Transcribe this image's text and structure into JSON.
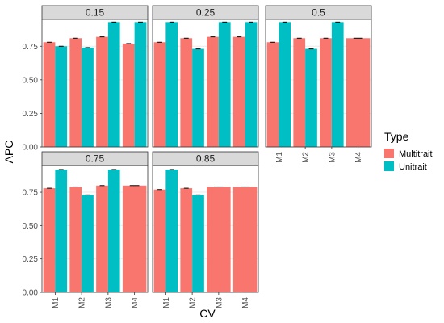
{
  "chart_data": {
    "type": "bar",
    "xlabel": "CV",
    "ylabel": "APC",
    "ylim": [
      0,
      0.95
    ],
    "yticks": [
      0.0,
      0.25,
      0.5,
      0.75
    ],
    "ytick_labels": [
      "0.00",
      "0.25",
      "0.50",
      "0.75"
    ],
    "categories": [
      "M1",
      "M2",
      "M3",
      "M4"
    ],
    "legend": {
      "title": "Type",
      "position": "right",
      "entries": [
        {
          "name": "Multitrait",
          "color": "#f8766d"
        },
        {
          "name": "Unitrait",
          "color": "#00bfc4"
        }
      ]
    },
    "colors": {
      "Multitrait": "#f8766d",
      "Unitrait": "#00bfc4",
      "strip": "#d9d9d9",
      "panel_border": "#333333",
      "grid": "#ebebeb"
    },
    "grid": true,
    "panels": [
      {
        "label": "0.15",
        "series": [
          {
            "name": "Multitrait",
            "values": [
              0.78,
              0.81,
              0.82,
              0.77
            ]
          },
          {
            "name": "Unitrait",
            "values": [
              0.75,
              0.74,
              0.93,
              0.93
            ]
          }
        ]
      },
      {
        "label": "0.25",
        "series": [
          {
            "name": "Multitrait",
            "values": [
              0.78,
              0.81,
              0.82,
              0.82
            ]
          },
          {
            "name": "Unitrait",
            "values": [
              0.93,
              0.73,
              0.93,
              0.93
            ]
          }
        ]
      },
      {
        "label": "0.5",
        "series": [
          {
            "name": "Multitrait",
            "values": [
              0.78,
              0.81,
              0.81,
              0.81
            ]
          },
          {
            "name": "Unitrait",
            "values": [
              0.93,
              0.73,
              0.93,
              null
            ]
          }
        ]
      },
      {
        "label": "0.75",
        "series": [
          {
            "name": "Multitrait",
            "values": [
              0.78,
              0.79,
              0.8,
              0.8
            ]
          },
          {
            "name": "Unitrait",
            "values": [
              0.92,
              0.73,
              0.92,
              null
            ]
          }
        ]
      },
      {
        "label": "0.85",
        "series": [
          {
            "name": "Multitrait",
            "values": [
              0.77,
              0.78,
              0.79,
              0.79
            ]
          },
          {
            "name": "Unitrait",
            "values": [
              0.92,
              0.73,
              null,
              null
            ]
          }
        ]
      }
    ]
  }
}
